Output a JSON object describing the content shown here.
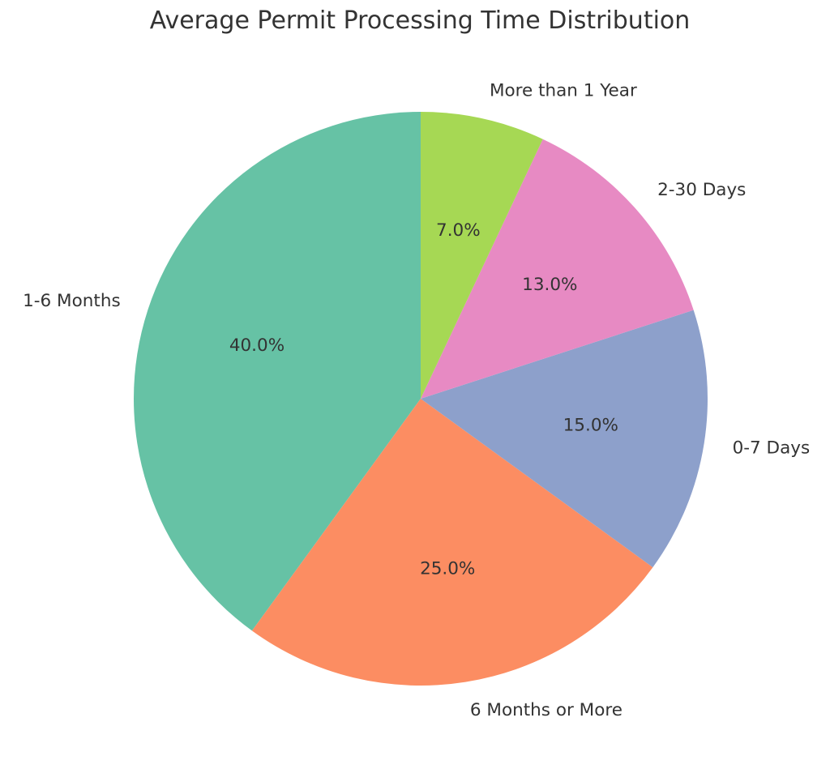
{
  "chart_data": {
    "type": "pie",
    "title": "Average Permit Processing Time Distribution",
    "start_angle_deg": 90,
    "direction": "counterclockwise",
    "slices": [
      {
        "label": "1-6 Months",
        "value": 40.0,
        "pct_label": "40.0%",
        "color": "#66c2a5"
      },
      {
        "label": "6 Months or More",
        "value": 25.0,
        "pct_label": "25.0%",
        "color": "#fc8d62"
      },
      {
        "label": "0-7 Days",
        "value": 15.0,
        "pct_label": "15.0%",
        "color": "#8da0cb"
      },
      {
        "label": "2-30 Days",
        "value": 13.0,
        "pct_label": "13.0%",
        "color": "#e78ac3"
      },
      {
        "label": "More than 1 Year",
        "value": 7.0,
        "pct_label": "7.0%",
        "color": "#a6d854"
      }
    ]
  }
}
